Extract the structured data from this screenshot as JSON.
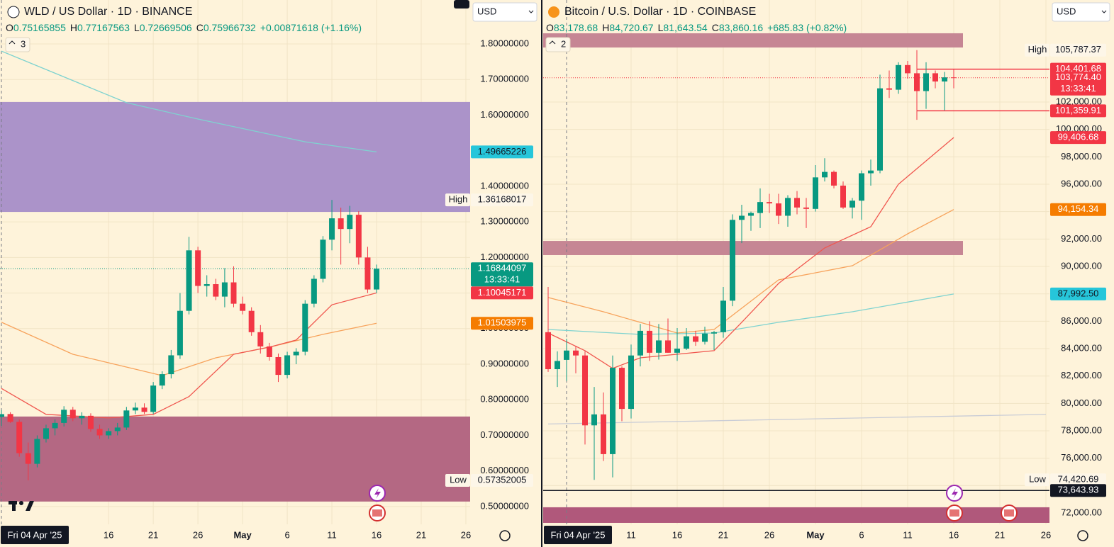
{
  "chart_data": [
    {
      "type": "candlestick",
      "title": "WLD / US Dollar · 1D · BINANCE",
      "currency": "USD",
      "indicator_count": "3",
      "legend": [
        {
          "letter": "O",
          "value": 0.75165855,
          "label": "0.75165855"
        },
        {
          "letter": "H",
          "value": 0.77167563,
          "label": "0.77167563"
        },
        {
          "letter": "L",
          "value": 0.72669506,
          "label": "0.72669506"
        },
        {
          "letter": "C",
          "value": 0.75966732,
          "label": "0.75966732"
        }
      ],
      "change": {
        "value": 0.00871618,
        "label": "+0.00871618 (+1.16%)"
      },
      "up_color": "#089981",
      "down_color": "#f23645",
      "grid": true,
      "x": [
        "2025-04-04",
        "2025-04-05",
        "2025-04-06",
        "2025-04-07",
        "2025-04-08",
        "2025-04-09",
        "2025-04-10",
        "2025-04-11",
        "2025-04-12",
        "2025-04-13",
        "2025-04-14",
        "2025-04-15",
        "2025-04-16",
        "2025-04-17",
        "2025-04-18",
        "2025-04-19",
        "2025-04-20",
        "2025-04-21",
        "2025-04-22",
        "2025-04-23",
        "2025-04-24",
        "2025-04-25",
        "2025-04-26",
        "2025-04-27",
        "2025-04-28",
        "2025-04-29",
        "2025-04-30",
        "2025-05-01",
        "2025-05-02",
        "2025-05-03",
        "2025-05-04",
        "2025-05-05",
        "2025-05-06",
        "2025-05-07",
        "2025-05-08",
        "2025-05-09",
        "2025-05-10",
        "2025-05-11",
        "2025-05-12",
        "2025-05-13",
        "2025-05-14",
        "2025-05-15",
        "2025-05-16"
      ],
      "open": [
        0.75165855,
        0.76,
        0.738,
        0.65,
        0.62,
        0.69,
        0.72,
        0.735,
        0.772,
        0.748,
        0.755,
        0.718,
        0.7,
        0.712,
        0.722,
        0.77,
        0.778,
        0.766,
        0.84,
        0.872,
        0.925,
        1.05,
        1.22,
        1.12,
        1.125,
        1.09,
        1.13,
        1.07,
        1.05,
        0.99,
        0.95,
        0.92,
        0.87,
        0.925,
        0.935,
        1.07,
        1.14,
        1.25,
        1.31,
        1.28,
        1.32,
        1.2,
        1.11
      ],
      "high": [
        0.77167563,
        0.765,
        0.745,
        0.68,
        0.7,
        0.73,
        0.745,
        0.782,
        0.78,
        0.765,
        0.762,
        0.73,
        0.72,
        0.735,
        0.78,
        0.792,
        0.79,
        0.85,
        0.88,
        0.94,
        1.1,
        1.258,
        1.23,
        1.15,
        1.14,
        1.17,
        1.175,
        1.09,
        1.06,
        1.01,
        0.96,
        0.93,
        0.935,
        0.945,
        1.08,
        1.15,
        1.26,
        1.36168017,
        1.34,
        1.345,
        1.33,
        1.23,
        1.18
      ],
      "low": [
        0.72669506,
        0.735,
        0.64,
        0.57352005,
        0.61,
        0.68,
        0.7,
        0.725,
        0.74,
        0.73,
        0.71,
        0.69,
        0.69,
        0.7,
        0.715,
        0.76,
        0.76,
        0.76,
        0.83,
        0.86,
        0.915,
        1.04,
        1.1,
        1.09,
        1.08,
        1.06,
        1.06,
        1.04,
        0.98,
        0.93,
        0.91,
        0.85,
        0.86,
        0.9,
        0.925,
        1.06,
        1.13,
        1.22,
        1.18,
        1.24,
        1.18,
        1.1,
        1.1
      ],
      "close": [
        0.75966732,
        0.738,
        0.65,
        0.62,
        0.69,
        0.72,
        0.735,
        0.772,
        0.748,
        0.755,
        0.718,
        0.7,
        0.712,
        0.722,
        0.77,
        0.778,
        0.766,
        0.84,
        0.872,
        0.925,
        1.05,
        1.22,
        1.12,
        1.125,
        1.09,
        1.13,
        1.07,
        1.05,
        0.99,
        0.95,
        0.92,
        0.87,
        0.925,
        0.935,
        1.07,
        1.14,
        1.25,
        1.31,
        1.28,
        1.32,
        1.2,
        1.11,
        1.16844097
      ],
      "xlim": [
        "2025-04-04",
        "2025-05-26"
      ],
      "xticks": [
        {
          "value": "2025-04-16",
          "label": "16"
        },
        {
          "value": "2025-04-21",
          "label": "21"
        },
        {
          "value": "2025-04-26",
          "label": "26"
        },
        {
          "value": "2025-05-01",
          "label": "May"
        },
        {
          "value": "2025-05-06",
          "label": "6"
        },
        {
          "value": "2025-05-11",
          "label": "11"
        },
        {
          "value": "2025-05-16",
          "label": "16"
        },
        {
          "value": "2025-05-21",
          "label": "21"
        },
        {
          "value": "2025-05-26",
          "label": "26"
        }
      ],
      "ylim": [
        0.45,
        1.824
      ],
      "yticks": [
        {
          "value": 0.5,
          "label": "0.50000000"
        },
        {
          "value": 0.6,
          "label": "0.60000000"
        },
        {
          "value": 0.7,
          "label": "0.70000000"
        },
        {
          "value": 0.8,
          "label": "0.80000000"
        },
        {
          "value": 0.9,
          "label": "0.90000000"
        },
        {
          "value": 1.0,
          "label": "1.00000000"
        },
        {
          "value": 1.1,
          "label": "1.10000000"
        },
        {
          "value": 1.2,
          "label": "1.20000000"
        },
        {
          "value": 1.3,
          "label": "1.30000000"
        },
        {
          "value": 1.4,
          "label": "1.40000000"
        },
        {
          "value": 1.5,
          "label": "1.50000000"
        },
        {
          "value": 1.6,
          "label": "1.60000000"
        },
        {
          "value": 1.7,
          "label": "1.70000000"
        },
        {
          "value": 1.8,
          "label": "1.80000000"
        }
      ],
      "crosshair": {
        "x": "2025-04-04",
        "label": "Fri 04 Apr '25"
      },
      "zones": [
        {
          "top": 1.637,
          "bottom": 1.328,
          "color": "#ab93c9"
        },
        {
          "top": 0.753,
          "bottom": 0.514,
          "color": "#b46883"
        }
      ],
      "overlays": [
        {
          "color": "#7fd3d0",
          "x": [
            "2025-04-04",
            "2025-04-18",
            "2025-04-26",
            "2025-05-08",
            "2025-05-16"
          ],
          "values": [
            1.78,
            1.635,
            1.589,
            1.525,
            1.49665226
          ]
        },
        {
          "color": "#f7a35c",
          "x": [
            "2025-04-04",
            "2025-04-12",
            "2025-04-22",
            "2025-04-28",
            "2025-05-04",
            "2025-05-10",
            "2025-05-16"
          ],
          "values": [
            1.018,
            0.928,
            0.868,
            0.918,
            0.948,
            0.984,
            1.01503975
          ]
        },
        {
          "color": "#f0574f",
          "x": [
            "2025-04-04",
            "2025-04-09",
            "2025-04-16",
            "2025-04-21",
            "2025-04-25",
            "2025-04-30",
            "2025-05-04",
            "2025-05-07",
            "2025-05-11",
            "2025-05-16"
          ],
          "values": [
            0.832,
            0.759,
            0.749,
            0.759,
            0.809,
            0.928,
            0.948,
            0.968,
            1.067,
            1.10045171
          ]
        }
      ],
      "price_labels": [
        {
          "value": 1.49665226,
          "label": "1.49665226",
          "bg": "#26c6da",
          "fg": "#131722"
        },
        {
          "value": 1.36168017,
          "label": "1.36168017",
          "tag": "High",
          "bg": "#fdf6e8",
          "fg": "#131722"
        },
        {
          "value": 1.16844097,
          "label": "1.16844097",
          "sub": "13:33:41",
          "bg": "#089981",
          "fg": "#ffffff",
          "line": "dotted"
        },
        {
          "value": 1.10045171,
          "label": "1.10045171",
          "bg": "#f23645",
          "fg": "#ffffff"
        },
        {
          "value": 1.01503975,
          "label": "1.01503975",
          "bg": "#f57c00",
          "fg": "#ffffff"
        },
        {
          "value": 0.57352005,
          "label": "0.57352005",
          "tag": "Low",
          "bg": "#fdf6e8",
          "fg": "#131722"
        }
      ]
    },
    {
      "type": "candlestick",
      "title": "Bitcoin / U.S. Dollar · 1D · COINBASE",
      "currency": "USD",
      "indicator_count": "2",
      "legend": [
        {
          "letter": "O",
          "value": 83178.68,
          "label": "83,178.68"
        },
        {
          "letter": "H",
          "value": 84720.67,
          "label": "84,720.67"
        },
        {
          "letter": "L",
          "value": 81643.54,
          "label": "81,643.54"
        },
        {
          "letter": "C",
          "value": 83860.16,
          "label": "83,860.16"
        }
      ],
      "change": {
        "value": 685.83,
        "label": "+685.83 (+0.82%)"
      },
      "up_color": "#089981",
      "down_color": "#f23645",
      "grid": true,
      "x": [
        "2025-04-02",
        "2025-04-03",
        "2025-04-04",
        "2025-04-05",
        "2025-04-06",
        "2025-04-07",
        "2025-04-08",
        "2025-04-09",
        "2025-04-10",
        "2025-04-11",
        "2025-04-12",
        "2025-04-13",
        "2025-04-14",
        "2025-04-15",
        "2025-04-16",
        "2025-04-17",
        "2025-04-18",
        "2025-04-19",
        "2025-04-20",
        "2025-04-21",
        "2025-04-22",
        "2025-04-23",
        "2025-04-24",
        "2025-04-25",
        "2025-04-26",
        "2025-04-27",
        "2025-04-28",
        "2025-04-29",
        "2025-04-30",
        "2025-05-01",
        "2025-05-02",
        "2025-05-03",
        "2025-05-04",
        "2025-05-05",
        "2025-05-06",
        "2025-05-07",
        "2025-05-08",
        "2025-05-09",
        "2025-05-10",
        "2025-05-11",
        "2025-05-12",
        "2025-05-13",
        "2025-05-14",
        "2025-05-15",
        "2025-05-16"
      ],
      "open": [
        85200,
        82500,
        83178.68,
        83860,
        83500,
        78400,
        79200,
        76300,
        82600,
        79600,
        83500,
        85300,
        83700,
        84600,
        83700,
        84000,
        84900,
        84500,
        85100,
        85200,
        87500,
        93400,
        93700,
        93900,
        94700,
        94600,
        93700,
        95000,
        94300,
        94200,
        96500,
        96900,
        95900,
        94300,
        94800,
        96800,
        97000,
        103000,
        102900,
        104700,
        104100,
        102800,
        104100,
        103500,
        103800
      ],
      "high": [
        88500,
        83800,
        84720.67,
        84200,
        83800,
        81200,
        80800,
        83500,
        82700,
        84300,
        85800,
        86000,
        85800,
        86200,
        85500,
        85500,
        85300,
        85600,
        85300,
        88500,
        93800,
        94500,
        94000,
        95700,
        95300,
        95300,
        95200,
        95500,
        95000,
        97400,
        97900,
        97000,
        96200,
        95000,
        97000,
        97800,
        104000,
        104300,
        104900,
        105000,
        105787.37,
        104900,
        104300,
        104200,
        104400
      ],
      "low": [
        82300,
        81200,
        81643.54,
        82200,
        77000,
        74420.69,
        75800,
        74600,
        78700,
        78900,
        82700,
        83100,
        83200,
        83700,
        83100,
        83900,
        84200,
        84300,
        83900,
        84800,
        87100,
        91700,
        92600,
        92800,
        93900,
        93100,
        92900,
        93800,
        92800,
        94000,
        96200,
        95700,
        94200,
        93500,
        93400,
        95900,
        96800,
        102300,
        102600,
        103700,
        100700,
        101500,
        103000,
        101400,
        103000
      ],
      "close": [
        82500,
        83100,
        83860.16,
        83500,
        78400,
        79200,
        76300,
        82600,
        79600,
        83500,
        85300,
        83700,
        84600,
        83700,
        84000,
        84900,
        84500,
        85100,
        85200,
        87500,
        93400,
        93700,
        93900,
        94700,
        94600,
        93700,
        95000,
        94300,
        94200,
        96500,
        96900,
        95900,
        94300,
        94800,
        96800,
        97000,
        103000,
        102900,
        104700,
        104100,
        102800,
        104100,
        103500,
        103800,
        103774.4
      ],
      "xlim": [
        "2025-04-02",
        "2025-05-26"
      ],
      "xticks": [
        {
          "value": "2025-04-11",
          "label": "11"
        },
        {
          "value": "2025-04-16",
          "label": "16"
        },
        {
          "value": "2025-04-21",
          "label": "21"
        },
        {
          "value": "2025-04-26",
          "label": "26"
        },
        {
          "value": "2025-05-01",
          "label": "May"
        },
        {
          "value": "2025-05-06",
          "label": "6"
        },
        {
          "value": "2025-05-11",
          "label": "11"
        },
        {
          "value": "2025-05-16",
          "label": "16"
        },
        {
          "value": "2025-05-21",
          "label": "21"
        },
        {
          "value": "2025-05-26",
          "label": "26"
        }
      ],
      "ylim": [
        71175,
        106862
      ],
      "yticks": [
        {
          "value": 72000,
          "label": "72,000.00"
        },
        {
          "value": 74000,
          "label": "74,000.00"
        },
        {
          "value": 76000,
          "label": "76,000.00"
        },
        {
          "value": 78000,
          "label": "78,000.00"
        },
        {
          "value": 80000,
          "label": "80,000.00"
        },
        {
          "value": 82000,
          "label": "82,000.00"
        },
        {
          "value": 84000,
          "label": "84,000.00"
        },
        {
          "value": 86000,
          "label": "86,000.00"
        },
        {
          "value": 88000,
          "label": "88,000.00"
        },
        {
          "value": 90000,
          "label": "90,000.00"
        },
        {
          "value": 92000,
          "label": "92,000.00"
        },
        {
          "value": 94000,
          "label": "94,000.00"
        },
        {
          "value": 96000,
          "label": "96,000.00"
        },
        {
          "value": 98000,
          "label": "98,000.00"
        },
        {
          "value": 100000,
          "label": "100,000.00"
        },
        {
          "value": 102000,
          "label": "102,000.00"
        }
      ],
      "crosshair": {
        "x": "2025-04-04",
        "label": "Fri 04 Apr '25"
      },
      "zones": [
        {
          "top": 107020,
          "bottom": 105980,
          "x_end": "2025-05-17",
          "color": "#c68694"
        },
        {
          "top": 91860,
          "bottom": 90830,
          "x_end": "2025-05-17",
          "color": "#c68694"
        },
        {
          "top": 72420,
          "bottom": 71280,
          "color": "#b0587b"
        }
      ],
      "overlays": [
        {
          "color": "#c9ccd6",
          "x": [
            "2025-04-02",
            "2025-05-26"
          ],
          "values": [
            78500,
            79200
          ]
        },
        {
          "color": "#7fd3d0",
          "x": [
            "2025-04-02",
            "2025-04-12",
            "2025-04-20",
            "2025-04-27",
            "2025-05-05",
            "2025-05-16"
          ],
          "values": [
            85400,
            85040,
            85140,
            85920,
            86690,
            87992.5
          ]
        },
        {
          "color": "#f7a35c",
          "x": [
            "2025-04-02",
            "2025-04-08",
            "2025-04-16",
            "2025-04-20",
            "2025-04-27",
            "2025-05-05",
            "2025-05-11",
            "2025-05-16"
          ],
          "values": [
            87730,
            86690,
            85140,
            85400,
            89020,
            90050,
            92380,
            94154.34
          ]
        },
        {
          "color": "#f0574f",
          "x": [
            "2025-04-02",
            "2025-04-06",
            "2025-04-09",
            "2025-04-12",
            "2025-04-20",
            "2025-04-23",
            "2025-04-27",
            "2025-05-02",
            "2025-05-07",
            "2025-05-10",
            "2025-05-16"
          ],
          "values": [
            85140,
            83850,
            82560,
            83330,
            83850,
            85920,
            88760,
            91350,
            92900,
            96000,
            99406.68
          ]
        }
      ],
      "price_labels": [
        {
          "value": 105787.37,
          "label": "105,787.37",
          "tag": "High",
          "bg": "#fdf6e8",
          "fg": "#131722"
        },
        {
          "value": 104401.68,
          "label": "104,401.68",
          "bg": "#f23645",
          "fg": "#ffffff",
          "line": "solid",
          "line_from": "2025-05-12"
        },
        {
          "value": 103774.4,
          "label": "103,774.40",
          "sub": "13:33:41",
          "bg": "#f23645",
          "fg": "#ffffff",
          "line": "dotted"
        },
        {
          "value": 101359.91,
          "label": "101,359.91",
          "bg": "#f23645",
          "fg": "#ffffff",
          "line": "solid",
          "line_from": "2025-05-12"
        },
        {
          "value": 99406.68,
          "label": "99,406.68",
          "bg": "#f23645",
          "fg": "#ffffff"
        },
        {
          "value": 94154.34,
          "label": "94,154.34",
          "bg": "#f57c00",
          "fg": "#ffffff"
        },
        {
          "value": 87992.5,
          "label": "87,992.50",
          "bg": "#26c6da",
          "fg": "#131722"
        },
        {
          "value": 74420.69,
          "label": "74,420.69",
          "tag": "Low",
          "bg": "#fdf6e8",
          "fg": "#131722"
        },
        {
          "value": 73643.93,
          "label": "73,643.93",
          "bg": "#131722",
          "fg": "#ffffff",
          "line": "solid"
        }
      ]
    }
  ]
}
